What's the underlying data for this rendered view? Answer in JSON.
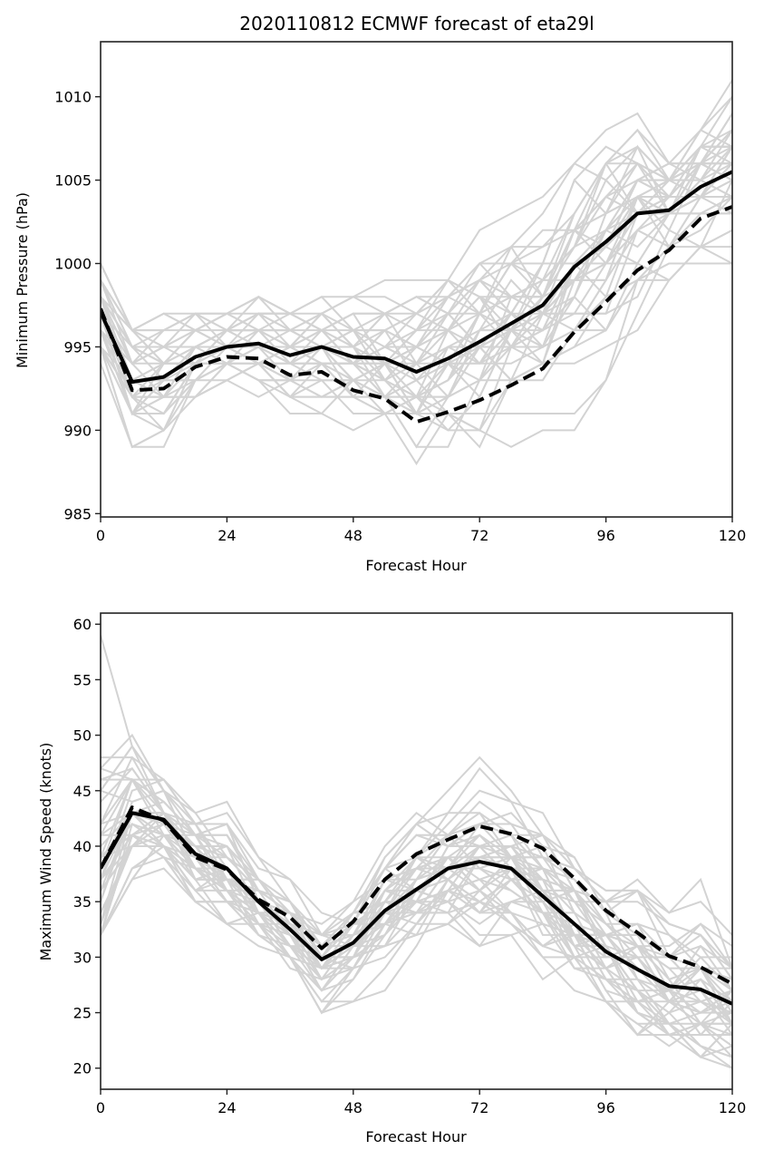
{
  "chart_data": [
    {
      "type": "line",
      "title": "2020110812 ECMWF forecast of eta29l",
      "xlabel": "Forecast Hour",
      "ylabel": "Minimum Pressure (hPa)",
      "xlim": [
        0,
        120
      ],
      "ylim": [
        984.8,
        1013.3
      ],
      "xticks": [
        0,
        24,
        48,
        72,
        96,
        120
      ],
      "yticks": [
        985,
        990,
        995,
        1000,
        1005,
        1010
      ],
      "grid": false,
      "x": [
        0,
        6,
        12,
        18,
        24,
        30,
        36,
        42,
        48,
        54,
        60,
        66,
        72,
        78,
        84,
        90,
        96,
        102,
        108,
        114,
        120
      ],
      "series": [
        {
          "name": "ensemble-mean",
          "style": "solid",
          "color": "#000000",
          "values": [
            997.1,
            992.9,
            993.2,
            994.4,
            995.0,
            995.2,
            994.5,
            995.0,
            994.4,
            994.3,
            993.5,
            994.3,
            995.3,
            996.4,
            997.5,
            999.8,
            1001.3,
            1003.0,
            1003.2,
            1004.6,
            1005.5
          ]
        },
        {
          "name": "deterministic",
          "style": "dashed",
          "color": "#000000",
          "values": [
            997.3,
            992.4,
            992.5,
            993.8,
            994.4,
            994.3,
            993.3,
            993.5,
            992.4,
            991.9,
            990.5,
            991.1,
            991.8,
            992.7,
            993.7,
            995.9,
            997.7,
            999.6,
            1000.8,
            1002.7,
            1003.4
          ]
        }
      ],
      "ensemble": {
        "color": "#d3d3d3",
        "members": 51,
        "min_hint": [
          991,
          987,
          988,
          990,
          992,
          992,
          990,
          991,
          990,
          989,
          986,
          986,
          986,
          988,
          990,
          989,
          990,
          994,
          997,
          999,
          1000
        ],
        "max_hint": [
          1000,
          998,
          998,
          998,
          998,
          999,
          998,
          1000,
          1000,
          1000,
          1000,
          1001,
          1002,
          1003,
          1004,
          1006,
          1008,
          1009,
          1009,
          1010,
          1012
        ]
      }
    },
    {
      "type": "line",
      "title": "",
      "xlabel": "Forecast Hour",
      "ylabel": "Maximum Wind Speed (knots)",
      "xlim": [
        0,
        120
      ],
      "ylim": [
        18.1,
        61
      ],
      "xticks": [
        0,
        24,
        48,
        72,
        96,
        120
      ],
      "yticks": [
        20,
        25,
        30,
        35,
        40,
        45,
        50,
        55,
        60
      ],
      "grid": false,
      "x": [
        0,
        6,
        12,
        18,
        24,
        30,
        36,
        42,
        48,
        54,
        60,
        66,
        72,
        78,
        84,
        90,
        96,
        102,
        108,
        114,
        120
      ],
      "series": [
        {
          "name": "ensemble-mean",
          "style": "solid",
          "color": "#000000",
          "values": [
            38.0,
            43.0,
            42.4,
            39.3,
            38.0,
            35.0,
            32.5,
            29.8,
            31.3,
            34.2,
            36.1,
            38.0,
            38.6,
            38.0,
            35.5,
            33.0,
            30.5,
            28.9,
            27.4,
            27.1,
            25.8
          ]
        },
        {
          "name": "deterministic",
          "style": "dashed",
          "color": "#000000",
          "values": [
            38.0,
            43.5,
            42.3,
            39.0,
            37.9,
            35.2,
            33.6,
            30.8,
            33.2,
            37.0,
            39.3,
            40.6,
            41.8,
            41.1,
            39.8,
            37.1,
            34.2,
            32.2,
            30.1,
            29.1,
            27.6
          ]
        }
      ],
      "ensemble": {
        "color": "#d3d3d3",
        "members": 51,
        "min_hint": [
          32,
          34,
          36,
          35,
          33,
          29,
          28,
          24,
          26,
          27,
          28,
          30,
          30,
          30,
          27,
          27,
          25,
          23,
          21,
          20,
          20
        ],
        "max_hint": [
          59,
          52,
          49,
          48,
          49,
          40,
          38,
          36,
          38,
          41,
          44,
          46,
          50,
          46,
          46,
          44,
          41,
          43,
          36,
          39,
          34
        ]
      }
    }
  ]
}
